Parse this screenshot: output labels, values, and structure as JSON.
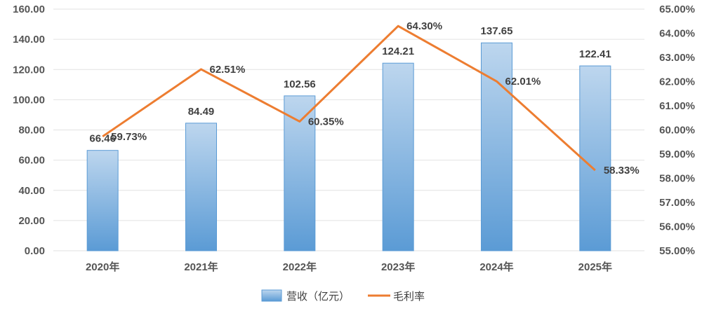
{
  "chart_data": {
    "type": "bar+line",
    "categories": [
      "2020年",
      "2021年",
      "2022年",
      "2023年",
      "2024年",
      "2025年"
    ],
    "series": [
      {
        "name": "营收（亿元）",
        "type": "bar",
        "axis": "left",
        "values": [
          66.46,
          84.49,
          102.56,
          124.21,
          137.65,
          122.41
        ],
        "labels": [
          "66.46",
          "84.49",
          "102.56",
          "124.21",
          "137.65",
          "122.41"
        ]
      },
      {
        "name": "毛利率",
        "type": "line",
        "axis": "right",
        "values": [
          59.73,
          62.51,
          60.35,
          64.3,
          62.01,
          58.33
        ],
        "labels": [
          "59.73%",
          "62.51%",
          "60.35%",
          "64.30%",
          "62.01%",
          "58.33%"
        ]
      }
    ],
    "y_left": {
      "min": 0,
      "max": 160,
      "ticks": [
        "0.00",
        "20.00",
        "40.00",
        "60.00",
        "80.00",
        "100.00",
        "120.00",
        "140.00",
        "160.00"
      ]
    },
    "y_right": {
      "min": 55,
      "max": 65,
      "ticks": [
        "55.00%",
        "56.00%",
        "57.00%",
        "58.00%",
        "59.00%",
        "60.00%",
        "61.00%",
        "62.00%",
        "63.00%",
        "64.00%",
        "65.00%"
      ]
    },
    "grid": true,
    "legend_position": "bottom",
    "colors": {
      "bar_top": "#bdd6ee",
      "bar_bottom": "#5b9bd5",
      "bar_border": "#5b9bd5",
      "line": "#ed7d31",
      "grid": "#e2e2e2"
    }
  }
}
